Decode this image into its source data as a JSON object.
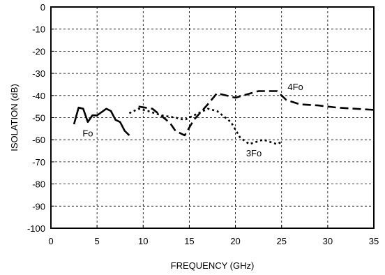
{
  "chart_data": {
    "type": "line",
    "xlabel": "FREQUENCY (GHz)",
    "ylabel": "ISOLATION (dB)",
    "xlim": [
      0,
      35
    ],
    "ylim": [
      -100,
      0
    ],
    "x_ticks": [
      0,
      5,
      10,
      15,
      20,
      25,
      30,
      35
    ],
    "y_ticks": [
      0,
      -10,
      -20,
      -30,
      -40,
      -50,
      -60,
      -70,
      -80,
      -90,
      -100
    ],
    "grid": true,
    "series": [
      {
        "name": "Fo",
        "style": "solid",
        "x": [
          2.5,
          3.0,
          3.5,
          4.0,
          4.5,
          5.0,
          5.5,
          6.0,
          6.5,
          7.0,
          7.5,
          8.0,
          8.5
        ],
        "y": [
          -53,
          -45.5,
          -46,
          -52,
          -49,
          -49,
          -47.5,
          -46,
          -47,
          -51,
          -52,
          -56,
          -58
        ]
      },
      {
        "name": "3Fo",
        "style": "dotted",
        "x": [
          8.5,
          9.5,
          10.5,
          12.0,
          13.5,
          14.5,
          15.5,
          17.0,
          18.0,
          19.5,
          20.5,
          21.5,
          23.0,
          24.5,
          25.0
        ],
        "y": [
          -48,
          -46,
          -47,
          -49,
          -50,
          -51,
          -49,
          -46,
          -47,
          -52,
          -59,
          -62,
          -60,
          -62,
          -61
        ]
      },
      {
        "name": "4Fo",
        "style": "dashed",
        "x": [
          9.5,
          11.0,
          12.5,
          13.0,
          13.5,
          14.5,
          15.5,
          17.0,
          18.0,
          20.0,
          22.5,
          24.5,
          25.5,
          27.0,
          29.0,
          31.0,
          33.0,
          35.0
        ],
        "y": [
          -45,
          -46,
          -51,
          -53,
          -56,
          -58,
          -51,
          -44,
          -39,
          -41,
          -38,
          -38,
          -42,
          -44,
          -44.5,
          -45.5,
          -46,
          -46.5
        ]
      }
    ],
    "annotations": [
      {
        "text": "Fo",
        "x": 4.0,
        "y": -57
      },
      {
        "text": "3Fo",
        "x": 22.0,
        "y": -66
      },
      {
        "text": "4Fo",
        "x": 26.5,
        "y": -36
      }
    ]
  }
}
